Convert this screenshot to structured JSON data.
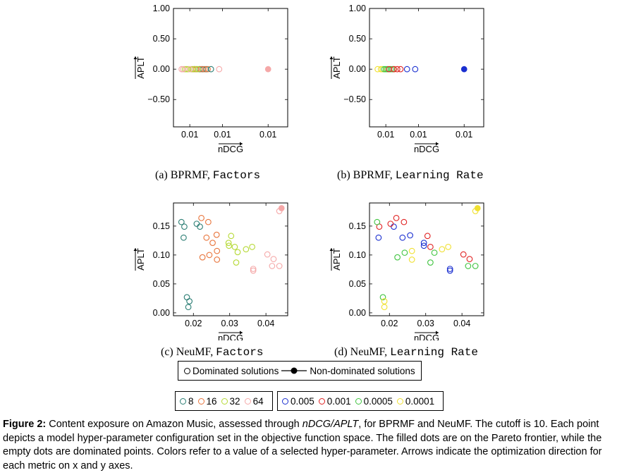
{
  "chart_data": [
    {
      "type": "scatter",
      "panel": "a",
      "xlabel": "nDCG",
      "ylabel": "APLT",
      "ylim": [
        -0.95,
        1.0
      ],
      "xlim": [
        0.0045,
        0.0115
      ],
      "y_ticks": [
        1.0,
        0.5,
        0.0,
        -0.5
      ],
      "y_tick_labels": [
        "1.00",
        "0.50",
        "0.00",
        "−0.50"
      ],
      "x_ticks": [
        0.0055,
        0.0075,
        0.0103
      ],
      "x_tick_labels": [
        "0.01",
        "0.01",
        "0.01"
      ],
      "series": [
        {
          "name": "8",
          "color": "#2a7d73",
          "points": [
            [
              0.0058,
              0
            ],
            [
              0.0061,
              0
            ],
            [
              0.0063,
              0
            ],
            [
              0.0065,
              0
            ]
          ]
        },
        {
          "name": "16",
          "color": "#e8743b",
          "points": [
            [
              0.0057,
              0
            ],
            [
              0.0059,
              0
            ],
            [
              0.0062,
              0
            ],
            [
              0.0064,
              0
            ],
            [
              0.0066,
              0
            ]
          ]
        },
        {
          "name": "32",
          "color": "#b5d934",
          "points": [
            [
              0.0052,
              0
            ],
            [
              0.0053,
              0
            ],
            [
              0.0054,
              0
            ],
            [
              0.0056,
              0
            ],
            [
              0.0058,
              0
            ],
            [
              0.006,
              0
            ]
          ]
        },
        {
          "name": "64",
          "color": "#f5a8a8",
          "points": [
            [
              0.005,
              0
            ],
            [
              0.0051,
              0
            ],
            [
              0.0055,
              0
            ],
            [
              0.0073,
              0
            ]
          ]
        },
        {
          "name": "8",
          "color": "#2a7d73",
          "points": [
            [
              0.0068,
              0
            ]
          ]
        },
        {
          "name": "64",
          "color": "#f5a8a8",
          "points": [
            [
              0.0103,
              0
            ]
          ],
          "filled": true
        }
      ],
      "caption_prefix": "(a) BPRMF, ",
      "caption_param": "Factors"
    },
    {
      "type": "scatter",
      "panel": "b",
      "xlabel": "nDCG",
      "ylabel": "APLT",
      "ylim": [
        -0.95,
        1.0
      ],
      "xlim": [
        0.0045,
        0.0115
      ],
      "y_ticks": [
        1.0,
        0.5,
        0.0,
        -0.5
      ],
      "y_tick_labels": [
        "1.00",
        "0.50",
        "0.00",
        "−0.50"
      ],
      "x_ticks": [
        0.0055,
        0.0075,
        0.0103
      ],
      "x_tick_labels": [
        "0.01",
        "0.01",
        "0.01"
      ],
      "series": [
        {
          "name": "0.0001",
          "color": "#f0e030",
          "points": [
            [
              0.005,
              0
            ],
            [
              0.0052,
              0
            ],
            [
              0.0053,
              0
            ],
            [
              0.006,
              0
            ]
          ]
        },
        {
          "name": "0.0005",
          "color": "#3fc43f",
          "points": [
            [
              0.0054,
              0
            ],
            [
              0.0055,
              0
            ],
            [
              0.0056,
              0
            ],
            [
              0.0058,
              0
            ],
            [
              0.0059,
              0
            ]
          ]
        },
        {
          "name": "0.001",
          "color": "#e02020",
          "points": [
            [
              0.0057,
              0
            ],
            [
              0.006,
              0
            ],
            [
              0.0062,
              0
            ],
            [
              0.0064,
              0
            ]
          ]
        },
        {
          "name": "0.005",
          "color": "#1a2fd0",
          "points": [
            [
              0.0068,
              0
            ],
            [
              0.0073,
              0
            ]
          ]
        },
        {
          "name": "0.005",
          "color": "#1a2fd0",
          "points": [
            [
              0.0103,
              0
            ]
          ],
          "filled": true
        }
      ],
      "caption_prefix": "(b) BPRMF, ",
      "caption_param": "Learning Rate"
    },
    {
      "type": "scatter",
      "panel": "c",
      "xlabel": "nDCG",
      "ylabel": "APLT",
      "xlim": [
        0.0145,
        0.046
      ],
      "ylim": [
        -0.005,
        0.19
      ],
      "x_ticks": [
        0.02,
        0.03,
        0.04
      ],
      "x_tick_labels": [
        "0.02",
        "0.03",
        "0.04"
      ],
      "y_ticks": [
        0.0,
        0.05,
        0.1,
        0.15
      ],
      "y_tick_labels": [
        "0.00",
        "0.05",
        "0.10",
        "0.15"
      ],
      "series": [
        {
          "name": "8",
          "color": "#2a7d73",
          "points": [
            [
              0.0167,
              0.157
            ],
            [
              0.0175,
              0.149
            ],
            [
              0.0173,
              0.13
            ],
            [
              0.0209,
              0.154
            ],
            [
              0.0218,
              0.149
            ],
            [
              0.0182,
              0.027
            ],
            [
              0.0189,
              0.02
            ],
            [
              0.0186,
              0.01
            ]
          ]
        },
        {
          "name": "16",
          "color": "#e8743b",
          "points": [
            [
              0.0222,
              0.164
            ],
            [
              0.0241,
              0.157
            ],
            [
              0.0236,
              0.13
            ],
            [
              0.0264,
              0.135
            ],
            [
              0.0253,
              0.121
            ],
            [
              0.0225,
              0.096
            ],
            [
              0.0244,
              0.1
            ],
            [
              0.0265,
              0.107
            ],
            [
              0.0265,
              0.092
            ]
          ]
        },
        {
          "name": "32",
          "color": "#b5d934",
          "points": [
            [
              0.0304,
              0.133
            ],
            [
              0.0297,
              0.121
            ],
            [
              0.0298,
              0.116
            ],
            [
              0.0314,
              0.114
            ],
            [
              0.0322,
              0.105
            ],
            [
              0.0345,
              0.11
            ],
            [
              0.0362,
              0.114
            ],
            [
              0.0318,
              0.087
            ]
          ]
        },
        {
          "name": "64",
          "color": "#f5a8a8",
          "points": [
            [
              0.0437,
              0.176
            ],
            [
              0.0404,
              0.101
            ],
            [
              0.0421,
              0.093
            ],
            [
              0.0417,
              0.081
            ],
            [
              0.0437,
              0.081
            ],
            [
              0.0365,
              0.076
            ],
            [
              0.0365,
              0.073
            ]
          ]
        },
        {
          "name": "64",
          "color": "#f5a8a8",
          "points": [
            [
              0.0443,
              0.181
            ]
          ],
          "filled": true
        }
      ],
      "caption_prefix": "(c) NeuMF, ",
      "caption_param": "Factors"
    },
    {
      "type": "scatter",
      "panel": "d",
      "xlabel": "nDCG",
      "ylabel": "APLT",
      "xlim": [
        0.0145,
        0.046
      ],
      "ylim": [
        -0.005,
        0.19
      ],
      "x_ticks": [
        0.02,
        0.03,
        0.04
      ],
      "x_tick_labels": [
        "0.02",
        "0.03",
        "0.04"
      ],
      "y_ticks": [
        0.0,
        0.05,
        0.1,
        0.15
      ],
      "y_tick_labels": [
        "0.00",
        "0.05",
        "0.10",
        "0.15"
      ],
      "series": [
        {
          "name": "0.005",
          "color": "#1a2fd0",
          "points": [
            [
              0.017,
              0.13
            ],
            [
              0.0212,
              0.149
            ],
            [
              0.0236,
              0.13
            ],
            [
              0.0257,
              0.134
            ],
            [
              0.0295,
              0.121
            ],
            [
              0.0295,
              0.116
            ],
            [
              0.0367,
              0.076
            ],
            [
              0.0367,
              0.073
            ]
          ]
        },
        {
          "name": "0.001",
          "color": "#e02020",
          "points": [
            [
              0.0172,
              0.149
            ],
            [
              0.0219,
              0.164
            ],
            [
              0.0203,
              0.154
            ],
            [
              0.024,
              0.157
            ],
            [
              0.0305,
              0.133
            ],
            [
              0.0313,
              0.114
            ],
            [
              0.0404,
              0.101
            ],
            [
              0.0421,
              0.093
            ]
          ]
        },
        {
          "name": "0.0005",
          "color": "#3fc43f",
          "points": [
            [
              0.0166,
              0.157
            ],
            [
              0.0222,
              0.096
            ],
            [
              0.0242,
              0.104
            ],
            [
              0.0324,
              0.104
            ],
            [
              0.0313,
              0.087
            ],
            [
              0.0182,
              0.027
            ],
            [
              0.0417,
              0.081
            ],
            [
              0.0437,
              0.081
            ]
          ]
        },
        {
          "name": "0.0001",
          "color": "#f0e030",
          "points": [
            [
              0.0186,
              0.02
            ],
            [
              0.0186,
              0.01
            ],
            [
              0.0262,
              0.107
            ],
            [
              0.0262,
              0.092
            ],
            [
              0.0345,
              0.11
            ],
            [
              0.0362,
              0.114
            ],
            [
              0.0437,
              0.176
            ]
          ]
        },
        {
          "name": "0.0001",
          "color": "#f0e030",
          "points": [
            [
              0.0443,
              0.181
            ]
          ],
          "filled": true
        }
      ],
      "caption_prefix": "(d) NeuMF, ",
      "caption_param": "Learning Rate"
    }
  ],
  "legend_main": {
    "dominated": "Dominated solutions",
    "nondominated": "Non-dominated solutions"
  },
  "legend_factors": [
    {
      "label": "8",
      "color": "#2a7d73"
    },
    {
      "label": "16",
      "color": "#e8743b"
    },
    {
      "label": "32",
      "color": "#b5d934"
    },
    {
      "label": "64",
      "color": "#f5a8a8"
    }
  ],
  "legend_lr": [
    {
      "label": "0.005",
      "color": "#1a2fd0"
    },
    {
      "label": "0.001",
      "color": "#e02020"
    },
    {
      "label": "0.0005",
      "color": "#3fc43f"
    },
    {
      "label": "0.0001",
      "color": "#f0e030"
    }
  ],
  "caption": {
    "label": "Figure 2:",
    "text_1": " Content exposure on Amazon Music, assessed through ",
    "metric": "nDCG/APLT",
    "text_2": ", for BPRMF and NeuMF. The cutoff is 10. Each point depicts a model hyper-parameter configuration set in the objective function space. The filled dots are on the Pareto frontier, while the empty dots are dominated points. Colors refer to a value of a selected hyper-parameter. Arrows indicate the optimization direction for each metric on x and y axes."
  }
}
